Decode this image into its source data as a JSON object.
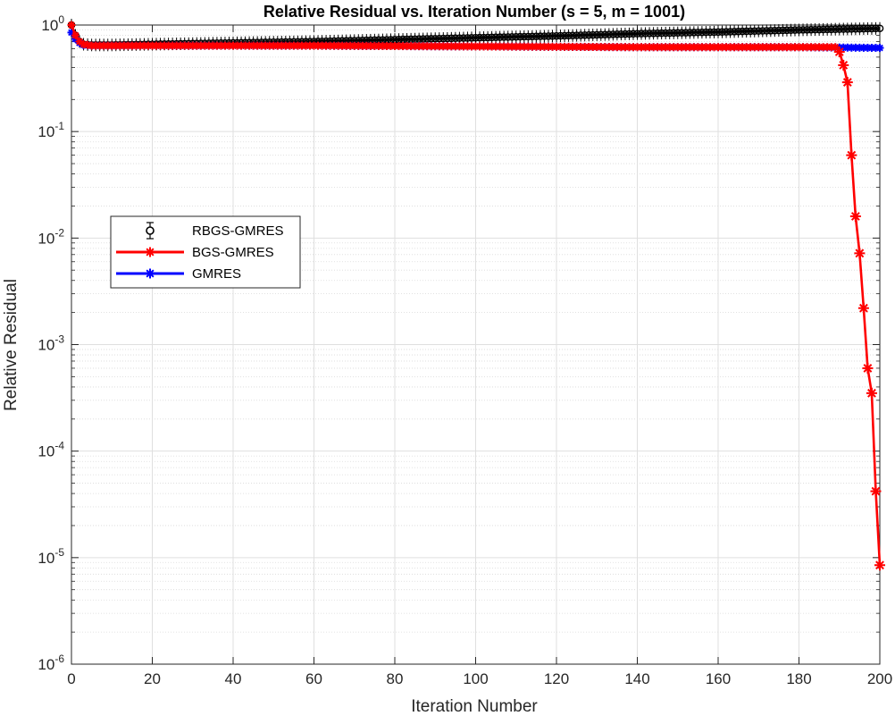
{
  "chart_data": {
    "type": "line",
    "title": "Relative Residual vs. Iteration Number (s = 5, m = 1001)",
    "xlabel": "Iteration Number",
    "ylabel": "Relative Residual",
    "xlim": [
      0,
      200
    ],
    "ylim": [
      1e-06,
      1
    ],
    "yscale": "log",
    "grid": true,
    "minor_grid": true,
    "legend_position": "left",
    "x_ticks": [
      0,
      20,
      40,
      60,
      80,
      100,
      120,
      140,
      160,
      180,
      200
    ],
    "y_ticks": [
      {
        "value": 1,
        "base": "10",
        "exp": "0"
      },
      {
        "value": 0.1,
        "base": "10",
        "exp": "-1"
      },
      {
        "value": 0.01,
        "base": "10",
        "exp": "-2"
      },
      {
        "value": 0.001,
        "base": "10",
        "exp": "-3"
      },
      {
        "value": 0.0001,
        "base": "10",
        "exp": "-4"
      },
      {
        "value": 1e-05,
        "base": "10",
        "exp": "-5"
      },
      {
        "value": 1e-06,
        "base": "10",
        "exp": "-6"
      }
    ],
    "series": [
      {
        "name": "RBGS-GMRES",
        "color": "#000000",
        "marker": "circle",
        "error_bars": true,
        "points": [
          [
            0,
            1.0
          ],
          [
            1,
            0.8
          ],
          [
            2,
            0.7
          ],
          [
            3,
            0.66
          ],
          [
            5,
            0.65
          ],
          [
            10,
            0.65
          ],
          [
            20,
            0.66
          ],
          [
            40,
            0.68
          ],
          [
            60,
            0.7
          ],
          [
            80,
            0.73
          ],
          [
            100,
            0.76
          ],
          [
            120,
            0.79
          ],
          [
            140,
            0.83
          ],
          [
            160,
            0.86
          ],
          [
            180,
            0.9
          ],
          [
            200,
            0.93
          ]
        ]
      },
      {
        "name": "BGS-GMRES",
        "color": "#ff0000",
        "marker": "asterisk",
        "points": [
          [
            0,
            1.0
          ],
          [
            1,
            0.8
          ],
          [
            2,
            0.7
          ],
          [
            3,
            0.66
          ],
          [
            5,
            0.64
          ],
          [
            20,
            0.64
          ],
          [
            60,
            0.64
          ],
          [
            100,
            0.63
          ],
          [
            140,
            0.62
          ],
          [
            180,
            0.62
          ],
          [
            189,
            0.62
          ],
          [
            190,
            0.56
          ],
          [
            191,
            0.42
          ],
          [
            192,
            0.29
          ],
          [
            193,
            0.06
          ],
          [
            194,
            0.016
          ],
          [
            195,
            0.0072
          ],
          [
            196,
            0.0022
          ],
          [
            197,
            0.0006
          ],
          [
            198,
            0.00035
          ],
          [
            199,
            4.2e-05
          ],
          [
            200,
            8.5e-06
          ]
        ]
      },
      {
        "name": "GMRES",
        "color": "#0000ff",
        "marker": "asterisk",
        "points": [
          [
            0,
            0.85
          ],
          [
            1,
            0.74
          ],
          [
            2,
            0.68
          ],
          [
            3,
            0.65
          ],
          [
            5,
            0.64
          ],
          [
            20,
            0.64
          ],
          [
            60,
            0.64
          ],
          [
            100,
            0.63
          ],
          [
            140,
            0.62
          ],
          [
            180,
            0.62
          ],
          [
            200,
            0.61
          ]
        ]
      }
    ]
  }
}
